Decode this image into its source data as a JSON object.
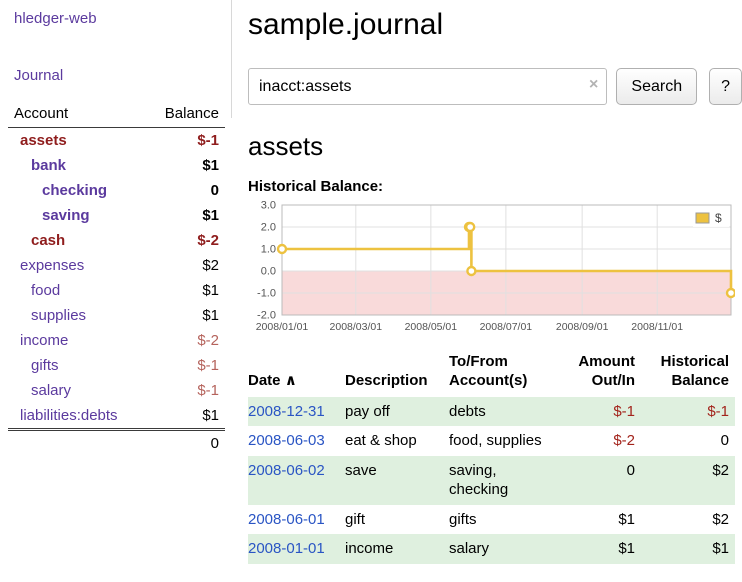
{
  "colors": {
    "link_purple": "#5b3a9e",
    "date_blue": "#2a55c4",
    "negative": "#a3241c",
    "negative_dark": "#8f1d1d",
    "negative_light": "#b5635c",
    "row_shade_green": "#dff0df",
    "chart_line": "#edc240",
    "chart_negative_region": "#f9dada"
  },
  "sidebar": {
    "app_title": "hledger-web",
    "journal_link": "Journal",
    "accounts_table": {
      "account_header": "Account",
      "balance_header": "Balance",
      "rows": [
        {
          "name": "assets",
          "balance": "$-1",
          "level": 0,
          "bold": true,
          "name_style": "negative",
          "balance_style": "negative"
        },
        {
          "name": "bank",
          "balance": "$1",
          "level": 1,
          "bold": true,
          "name_style": "link",
          "balance_style": "normal"
        },
        {
          "name": "checking",
          "balance": "0",
          "level": 2,
          "bold": true,
          "name_style": "link",
          "balance_style": "normal"
        },
        {
          "name": "saving",
          "balance": "$1",
          "level": 2,
          "bold": true,
          "name_style": "link",
          "balance_style": "normal"
        },
        {
          "name": "cash",
          "balance": "$-2",
          "level": 1,
          "bold": true,
          "name_style": "negative",
          "balance_style": "negative"
        },
        {
          "name": "expenses",
          "balance": "$2",
          "level": 0,
          "bold": false,
          "name_style": "link",
          "balance_style": "normal"
        },
        {
          "name": "food",
          "balance": "$1",
          "level": 1,
          "bold": false,
          "name_style": "link",
          "balance_style": "normal"
        },
        {
          "name": "supplies",
          "balance": "$1",
          "level": 1,
          "bold": false,
          "name_style": "link",
          "balance_style": "normal"
        },
        {
          "name": "income",
          "balance": "$-2",
          "level": 0,
          "bold": false,
          "name_style": "link",
          "balance_style": "negative_light"
        },
        {
          "name": "gifts",
          "balance": "$-1",
          "level": 1,
          "bold": false,
          "name_style": "link",
          "balance_style": "negative_light"
        },
        {
          "name": "salary",
          "balance": "$-1",
          "level": 1,
          "bold": false,
          "name_style": "link",
          "balance_style": "negative_light"
        },
        {
          "name": "liabilities:debts",
          "balance": "$1",
          "level": 0,
          "bold": false,
          "name_style": "link",
          "balance_style": "normal"
        }
      ],
      "total": "0"
    }
  },
  "main": {
    "title": "sample.journal",
    "search": {
      "value": "inacct:assets",
      "clear_label": "×",
      "search_button": "Search",
      "help_button": "?"
    },
    "account_heading": "assets",
    "chart_title": "Historical Balance:"
  },
  "chart_data": {
    "type": "line",
    "step": true,
    "title": "Historical Balance",
    "series": [
      {
        "name": "$",
        "points": [
          [
            "2008-01-01",
            1
          ],
          [
            "2008-06-01",
            2
          ],
          [
            "2008-06-02",
            2
          ],
          [
            "2008-06-03",
            0
          ],
          [
            "2008-12-31",
            -1
          ]
        ]
      }
    ],
    "x_range": [
      "2008-01-01",
      "2008-12-31"
    ],
    "ylim": [
      -2,
      3
    ],
    "yticks": [
      3,
      2,
      1,
      0,
      -1,
      -2
    ],
    "xtick_labels": [
      "2008/01/01",
      "2008/03/01",
      "2008/05/01",
      "2008/07/01",
      "2008/09/01",
      "2008/11/01"
    ],
    "legend": {
      "position": "top-right",
      "entries": [
        "$"
      ]
    },
    "grid": true,
    "negative_region_below": 0
  },
  "register": {
    "headers": {
      "date": "Date",
      "sort_indicator": "∧",
      "description": "Description",
      "account": "To/From Account(s)",
      "amount": "Amount Out/In",
      "balance": "Historical Balance"
    },
    "rows": [
      {
        "date": "2008-12-31",
        "description": "pay off",
        "accounts": "debts",
        "amount": "$-1",
        "amount_negative": true,
        "balance": "$-1",
        "balance_negative": true,
        "shaded": true
      },
      {
        "date": "2008-06-03",
        "description": "eat & shop",
        "accounts": "food, supplies",
        "amount": "$-2",
        "amount_negative": true,
        "balance": "0",
        "balance_negative": false,
        "shaded": false
      },
      {
        "date": "2008-06-02",
        "description": "save",
        "accounts": "saving, checking",
        "amount": "0",
        "amount_negative": false,
        "balance": "$2",
        "balance_negative": false,
        "shaded": true
      },
      {
        "date": "2008-06-01",
        "description": "gift",
        "accounts": "gifts",
        "amount": "$1",
        "amount_negative": false,
        "balance": "$2",
        "balance_negative": false,
        "shaded": false
      },
      {
        "date": "2008-01-01",
        "description": "income",
        "accounts": "salary",
        "amount": "$1",
        "amount_negative": false,
        "balance": "$1",
        "balance_negative": false,
        "shaded": true
      }
    ]
  }
}
